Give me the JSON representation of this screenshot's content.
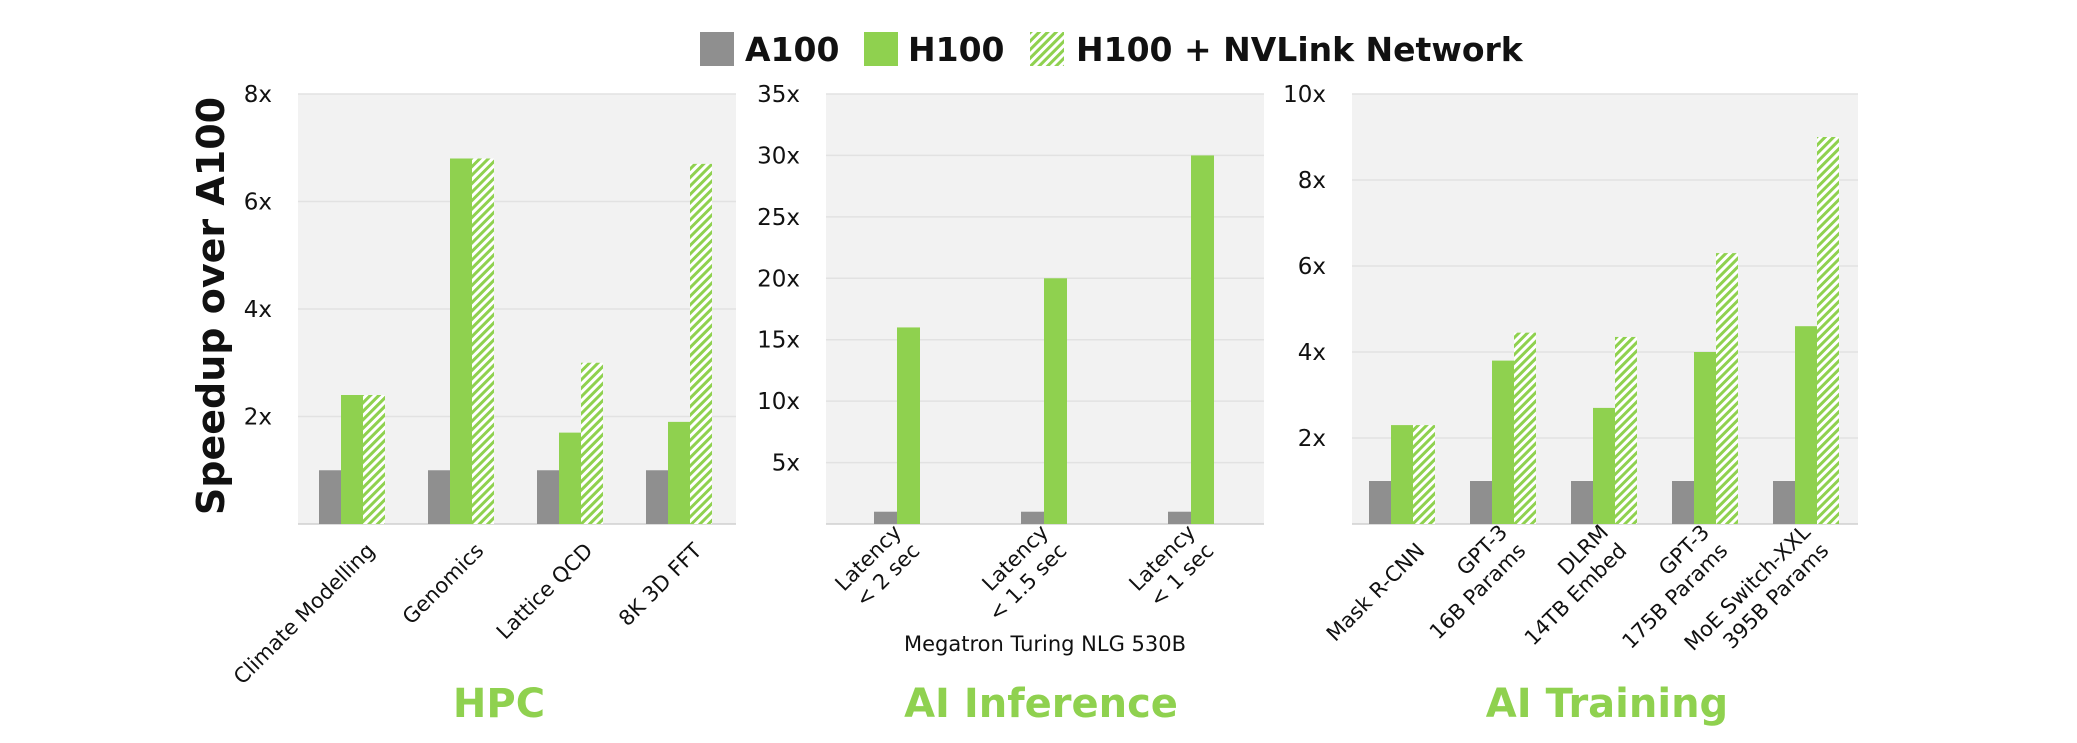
{
  "legend": {
    "items": [
      {
        "label": "A100",
        "style": "solid",
        "color": "#8f8f8f"
      },
      {
        "label": "H100",
        "style": "solid",
        "color": "#8fd14f"
      },
      {
        "label": "H100 + NVLink Network",
        "style": "hatched",
        "color": "#8fd14f"
      }
    ]
  },
  "ylabel": "Speedup over A100",
  "colors": {
    "a100": "#8f8f8f",
    "h100": "#8fd14f",
    "title": "#8fd14f",
    "plot_bg": "#f2f2f2",
    "grid": "#e2e2e2"
  },
  "chart_data": [
    {
      "type": "bar",
      "title": "HPC",
      "xlabel": "",
      "ylabel": "Speedup over A100",
      "ylim": [
        0,
        8
      ],
      "yticks": [
        {
          "value": 2,
          "label": "2x"
        },
        {
          "value": 4,
          "label": "4x"
        },
        {
          "value": 6,
          "label": "6x"
        },
        {
          "value": 8,
          "label": "8x"
        }
      ],
      "grid": true,
      "categories": [
        [
          "Climate Modelling"
        ],
        [
          "Genomics"
        ],
        [
          "Lattice QCD"
        ],
        [
          "8K 3D FFT"
        ]
      ],
      "series": [
        {
          "name": "A100",
          "values": [
            1,
            1,
            1,
            1
          ]
        },
        {
          "name": "H100",
          "values": [
            2.4,
            6.8,
            1.7,
            1.9
          ]
        },
        {
          "name": "H100 + NVLink Network",
          "values": [
            2.4,
            6.8,
            3.0,
            6.7
          ]
        }
      ]
    },
    {
      "type": "bar",
      "title": "AI Inference",
      "xlabel": "Megatron Turing NLG 530B",
      "ylim": [
        0,
        35
      ],
      "yticks": [
        {
          "value": 5,
          "label": "5x"
        },
        {
          "value": 10,
          "label": "10x"
        },
        {
          "value": 15,
          "label": "15x"
        },
        {
          "value": 20,
          "label": "20x"
        },
        {
          "value": 25,
          "label": "25x"
        },
        {
          "value": 30,
          "label": "30x"
        },
        {
          "value": 35,
          "label": "35x"
        }
      ],
      "grid": true,
      "categories": [
        [
          "Latency",
          "< 2 sec"
        ],
        [
          "Latency",
          "< 1.5 sec"
        ],
        [
          "Latency",
          "< 1 sec"
        ]
      ],
      "series": [
        {
          "name": "A100",
          "values": [
            1,
            1,
            1
          ]
        },
        {
          "name": "H100",
          "values": [
            16,
            20,
            30
          ]
        }
      ]
    },
    {
      "type": "bar",
      "title": "AI Training",
      "xlabel": "",
      "ylim": [
        0,
        10
      ],
      "yticks": [
        {
          "value": 2,
          "label": "2x"
        },
        {
          "value": 4,
          "label": "4x"
        },
        {
          "value": 6,
          "label": "6x"
        },
        {
          "value": 8,
          "label": "8x"
        },
        {
          "value": 10,
          "label": "10x"
        }
      ],
      "grid": true,
      "categories": [
        [
          "Mask R-CNN"
        ],
        [
          "GPT-3",
          "16B Params"
        ],
        [
          "DLRM",
          "14TB Embed"
        ],
        [
          "GPT-3",
          "175B Params"
        ],
        [
          "MoE Switch-XXL",
          "395B Params"
        ]
      ],
      "series": [
        {
          "name": "A100",
          "values": [
            1,
            1,
            1,
            1,
            1
          ]
        },
        {
          "name": "H100",
          "values": [
            2.3,
            3.8,
            2.7,
            4.0,
            4.6
          ]
        },
        {
          "name": "H100 + NVLink Network",
          "values": [
            2.3,
            4.45,
            4.35,
            6.3,
            9.0
          ]
        }
      ]
    }
  ]
}
